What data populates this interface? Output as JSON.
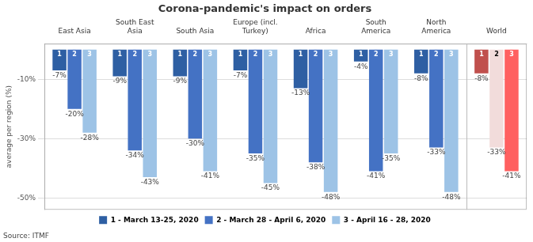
{
  "chart_data": {
    "type": "bar",
    "title": "Corona-pandemic's impact on orders",
    "ylabel": "average per region (%)",
    "source": "Source: ITMF",
    "categories": [
      "East Asia",
      "South East\nAsia",
      "South Asia",
      "Europe (incl.\nTurkey)",
      "Africa",
      "South\nAmerica",
      "North\nAmerica",
      "World"
    ],
    "series": [
      {
        "name": "1 - March 13-25, 2020",
        "bar_label": "1",
        "colors": [
          "#2E5FA3",
          "#2E5FA3",
          "#2E5FA3",
          "#2E5FA3",
          "#2E5FA3",
          "#2E5FA3",
          "#2E5FA3",
          "#C0504D"
        ],
        "values": [
          -7,
          -9,
          -9,
          -7,
          -13,
          -4,
          -8,
          -8
        ],
        "value_labels": [
          "-7%",
          "-9%",
          "-9%",
          "-7%",
          "-13%",
          "-4%",
          "-8%",
          "-8%"
        ]
      },
      {
        "name": "2 - March 28 - April 6, 2020",
        "bar_label": "2",
        "colors": [
          "#4472C4",
          "#4472C4",
          "#4472C4",
          "#4472C4",
          "#4472C4",
          "#4472C4",
          "#4472C4",
          "#F2DCDB"
        ],
        "values": [
          -20,
          -34,
          -30,
          -35,
          -38,
          -41,
          -33,
          -33
        ],
        "value_labels": [
          "-20%",
          "-34%",
          "-30%",
          "-35%",
          "-38%",
          "-41%",
          "-33%",
          "-33%"
        ]
      },
      {
        "name": "3 - April 16 - 28, 2020",
        "bar_label": "3",
        "colors": [
          "#9DC3E6",
          "#9DC3E6",
          "#9DC3E6",
          "#9DC3E6",
          "#9DC3E6",
          "#9DC3E6",
          "#9DC3E6",
          "#FF6060"
        ],
        "values": [
          -28,
          -43,
          -41,
          -45,
          -48,
          -35,
          -48,
          -41
        ],
        "value_labels": [
          "-28%",
          "-43%",
          "-41%",
          "-45%",
          "-48%",
          "-35%",
          "-48%",
          "-41%"
        ]
      }
    ],
    "ylim": [
      -54,
      2
    ],
    "yticks": [
      {
        "value": -50,
        "label": "-50%"
      },
      {
        "value": -30,
        "label": "-30%"
      },
      {
        "value": -10,
        "label": "-10%"
      }
    ],
    "grid": true,
    "data_labels": true,
    "legend": "bottom"
  }
}
